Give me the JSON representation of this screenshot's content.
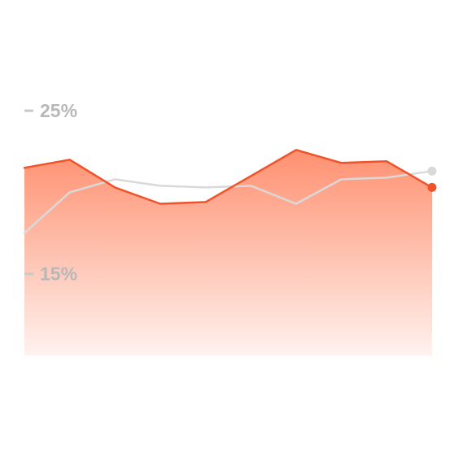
{
  "chart_data": {
    "type": "area",
    "title": "",
    "xlabel": "",
    "ylabel": "",
    "ylim": [
      10,
      27
    ],
    "grid": false,
    "legend": "none",
    "y_ticks": [
      {
        "value": 25,
        "label": "25%"
      },
      {
        "value": 15,
        "label": "15%"
      }
    ],
    "x": [
      0,
      1,
      2,
      3,
      4,
      5,
      6,
      7,
      8,
      9
    ],
    "series": [
      {
        "role": "primary",
        "color": "#f0532a",
        "fill_top": "#ff9070",
        "fill_bottom": "#fef2ee",
        "values": [
          21.5,
          22.0,
          20.3,
          19.3,
          19.4,
          21.0,
          22.6,
          21.8,
          21.9,
          20.3
        ]
      },
      {
        "role": "comparison",
        "color": "#d9d9d9",
        "values": [
          17.5,
          20.0,
          20.8,
          20.4,
          20.3,
          20.4,
          19.3,
          20.8,
          20.9,
          21.3
        ]
      }
    ]
  }
}
